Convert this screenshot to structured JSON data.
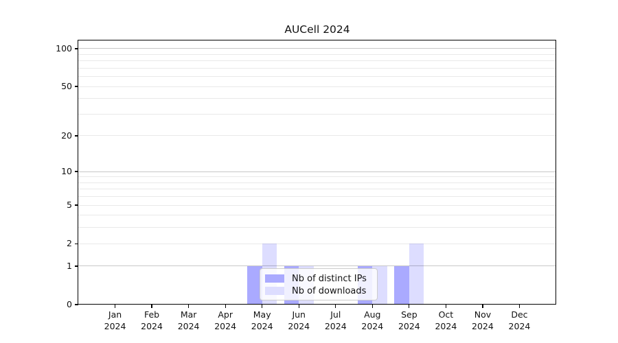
{
  "figure_title": "AUCell 2024",
  "chart_data": {
    "type": "bar",
    "title": "AUCell 2024",
    "categories": [
      "Jan 2024",
      "Feb 2024",
      "Mar 2024",
      "Apr 2024",
      "May 2024",
      "Jun 2024",
      "Jul 2024",
      "Aug 2024",
      "Sep 2024",
      "Oct 2024",
      "Nov 2024",
      "Dec 2024"
    ],
    "series": [
      {
        "name": "Nb of distinct IPs",
        "color": "#aaaaff",
        "values": [
          0,
          0,
          0,
          0,
          1,
          1,
          0,
          1,
          1,
          0,
          0,
          0
        ]
      },
      {
        "name": "Nb of downloads",
        "color": "#ddddff",
        "values": [
          0,
          0,
          0,
          0,
          2,
          1,
          0,
          1,
          2,
          0,
          0,
          0
        ]
      }
    ],
    "xlabel": "",
    "ylabel": "",
    "yscale": "log1p",
    "ylim": [
      0,
      116
    ],
    "ytick_values": [
      0,
      1,
      2,
      5,
      10,
      20,
      50,
      100
    ],
    "ytick_labels": [
      "0",
      "1",
      "2",
      "5",
      "10",
      "20",
      "50",
      "100"
    ],
    "major_gridline_values": [
      1,
      10,
      100
    ],
    "minor_gridline_values": [
      2,
      3,
      4,
      5,
      6,
      7,
      8,
      9,
      20,
      30,
      40,
      50,
      60,
      70,
      80,
      90
    ],
    "grid": true,
    "legend_position": "lower center"
  },
  "legend": {
    "items": [
      {
        "label": "Nb of distinct IPs",
        "color": "#aaaaff"
      },
      {
        "label": "Nb of downloads",
        "color": "#ddddff"
      }
    ]
  }
}
